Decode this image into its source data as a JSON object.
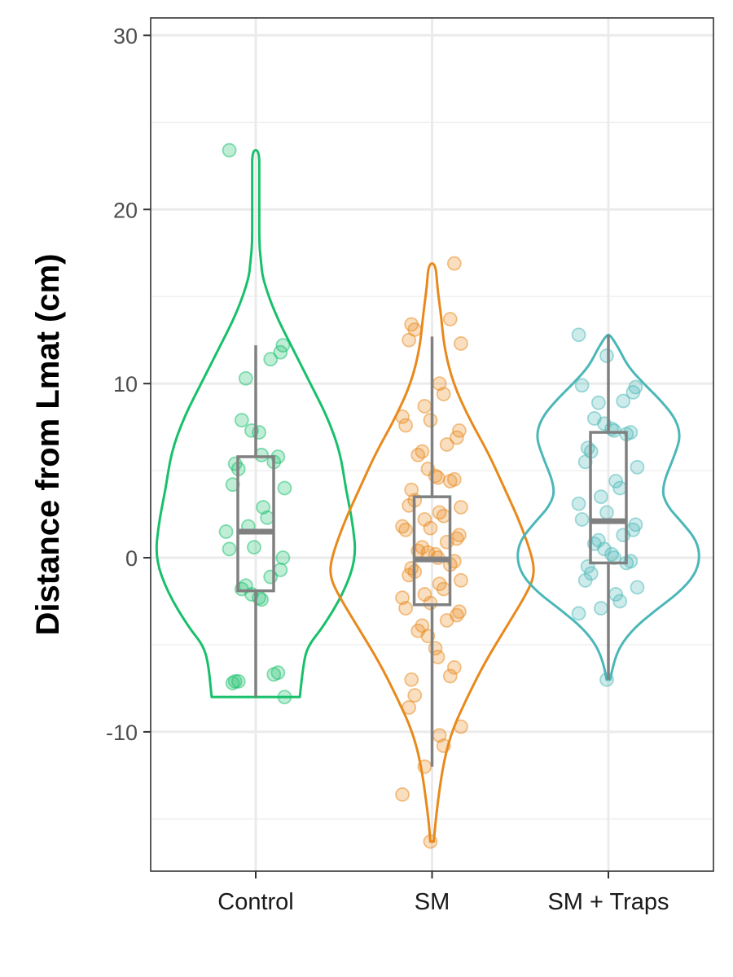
{
  "chart_data": {
    "type": "violin",
    "title": "",
    "xlabel": "",
    "ylabel": "Distance from Lmat (cm)",
    "ylim": [
      -18,
      31
    ],
    "yticks": [
      -10,
      0,
      10,
      20,
      30
    ],
    "ytick_labels": [
      "-10",
      "0",
      "10",
      "20",
      "30"
    ],
    "grid": true,
    "legend": "none",
    "categories": [
      "Control",
      "SM",
      "SM + Traps"
    ],
    "colors": [
      "#18c06b",
      "#e8891c",
      "#4bb7b8"
    ],
    "box_color": "#808080",
    "series": [
      {
        "category": "Control",
        "box": {
          "min": -8,
          "q1": -1.9,
          "median": 1.5,
          "q3": 5.8,
          "max": 12.2
        },
        "violin": {
          "y": [
            -8,
            -6,
            -5,
            -4,
            -2,
            0,
            2,
            4,
            6,
            8,
            10,
            12,
            14,
            16,
            17,
            18,
            20,
            22,
            23.4
          ],
          "width": [
            0.25,
            0.27,
            0.3,
            0.38,
            0.5,
            0.57,
            0.55,
            0.51,
            0.48,
            0.41,
            0.31,
            0.21,
            0.11,
            0.04,
            0.03,
            0.02,
            0.02,
            0.02,
            0.02
          ]
        },
        "points": [
          23.4,
          12.2,
          11.8,
          11.4,
          10.3,
          7.9,
          7.3,
          7.2,
          5.9,
          5.8,
          5.5,
          5.4,
          5.1,
          4.2,
          4.0,
          2.9,
          2.3,
          1.8,
          1.5,
          0.6,
          0.5,
          0.0,
          -0.7,
          -1.1,
          -1.6,
          -1.8,
          -2.1,
          -2.3,
          -2.4,
          -6.6,
          -6.7,
          -7.1,
          -7.1,
          -7.2,
          -8.0
        ]
      },
      {
        "category": "SM",
        "box": {
          "min": -12,
          "q1": -2.7,
          "median": -0.1,
          "q3": 3.5,
          "max": 12.7
        },
        "violin": {
          "y": [
            -16.3,
            -15,
            -12,
            -10,
            -8,
            -6,
            -4,
            -2,
            -1,
            0,
            2,
            4,
            6,
            8,
            10,
            12,
            14,
            15.5,
            16.9
          ],
          "width": [
            0.01,
            0.02,
            0.06,
            0.11,
            0.2,
            0.3,
            0.42,
            0.54,
            0.58,
            0.57,
            0.5,
            0.41,
            0.32,
            0.21,
            0.12,
            0.07,
            0.05,
            0.03,
            0.02
          ]
        },
        "points": [
          16.9,
          13.7,
          13.4,
          13.1,
          12.5,
          12.3,
          10.0,
          9.4,
          8.7,
          8.1,
          7.9,
          7.6,
          7.3,
          6.9,
          6.5,
          6.1,
          5.9,
          5.1,
          4.7,
          4.6,
          4.5,
          4.4,
          3.9,
          3.3,
          3.0,
          2.9,
          2.6,
          2.4,
          2.2,
          1.8,
          1.7,
          1.6,
          1.3,
          1.1,
          0.9,
          0.6,
          0.4,
          0.3,
          0.2,
          0.0,
          -0.2,
          -0.4,
          -0.6,
          -0.8,
          -1.0,
          -1.3,
          -1.5,
          -1.8,
          -2.1,
          -2.3,
          -2.6,
          -2.9,
          -3.1,
          -3.3,
          -3.6,
          -3.9,
          -4.2,
          -4.5,
          -5.2,
          -5.7,
          -6.3,
          -6.8,
          -7.0,
          -7.9,
          -8.6,
          -9.7,
          -10.2,
          -10.8,
          -12.0,
          -13.6,
          -16.3
        ]
      },
      {
        "category": "SM + Traps",
        "box": {
          "min": -7,
          "q1": -0.3,
          "median": 2.1,
          "q3": 7.2,
          "max": 12.8
        },
        "violin": {
          "y": [
            -7,
            -6,
            -5,
            -4,
            -3,
            -2,
            -1,
            0,
            1,
            2,
            3,
            4,
            6,
            7,
            8,
            9,
            10,
            11,
            12,
            12.8
          ],
          "width": [
            0.01,
            0.03,
            0.07,
            0.15,
            0.27,
            0.4,
            0.49,
            0.52,
            0.5,
            0.42,
            0.33,
            0.3,
            0.38,
            0.41,
            0.38,
            0.3,
            0.2,
            0.11,
            0.06,
            0.01
          ]
        },
        "points": [
          12.8,
          11.6,
          9.9,
          9.8,
          9.5,
          9.0,
          8.9,
          8.0,
          7.7,
          7.4,
          7.3,
          7.2,
          7.1,
          6.3,
          6.1,
          5.5,
          5.2,
          4.4,
          4.0,
          3.5,
          3.1,
          2.6,
          2.2,
          1.9,
          1.6,
          1.3,
          1.0,
          0.8,
          0.5,
          0.2,
          0.0,
          -0.2,
          -0.3,
          -0.5,
          -0.9,
          -1.3,
          -1.7,
          -2.1,
          -2.5,
          -2.9,
          -3.2,
          -7.0
        ]
      }
    ]
  }
}
